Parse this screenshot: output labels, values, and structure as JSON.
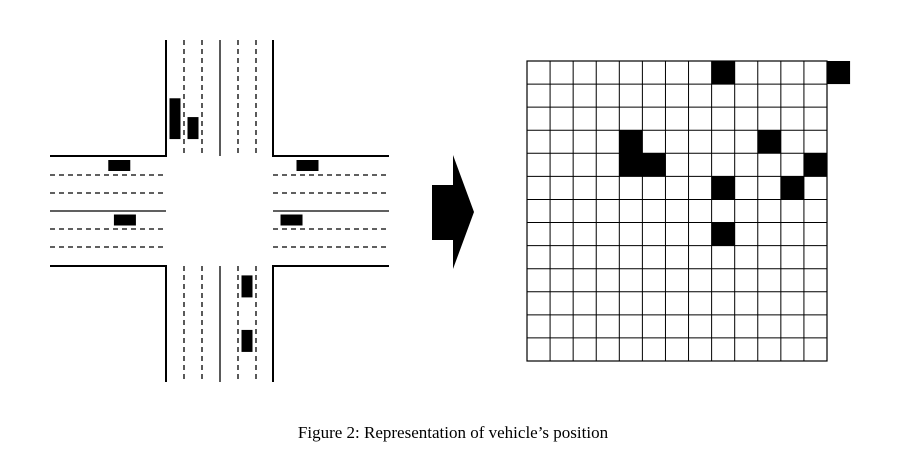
{
  "caption": "Figure 2: Representation of vehicle’s position",
  "grid": {
    "rows": 13,
    "cols": 13,
    "occupied": [
      [
        4,
        3
      ],
      [
        4,
        4
      ],
      [
        5,
        4
      ],
      [
        8,
        0
      ],
      [
        10,
        3
      ],
      [
        13,
        0
      ],
      [
        12,
        4
      ],
      [
        11,
        5
      ],
      [
        8,
        5
      ],
      [
        8,
        7
      ]
    ]
  },
  "vehicles": [
    {
      "road": "north",
      "lane": 1,
      "pos": 0.62
    },
    {
      "road": "north",
      "lane": 1,
      "pos": 0.82
    },
    {
      "road": "north",
      "lane": 2,
      "pos": 0.82
    },
    {
      "road": "west",
      "lane": 1,
      "pos": 0.62
    },
    {
      "road": "west",
      "lane": 4,
      "pos": 0.68
    },
    {
      "road": "east",
      "lane": 1,
      "pos": 0.25
    },
    {
      "road": "east",
      "lane": 4,
      "pos": 0.08
    },
    {
      "road": "south",
      "lane": 5,
      "pos": 0.1
    },
    {
      "road": "south",
      "lane": 5,
      "pos": 0.68
    }
  ],
  "colors": {
    "ink": "#000000",
    "cell": "#ffffff"
  }
}
